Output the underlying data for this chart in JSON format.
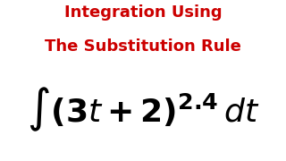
{
  "background_color": "#ffffff",
  "title_line1": "Integration Using",
  "title_line2": "The Substitution Rule",
  "title_color": "#cc0000",
  "title_fontsize": 13,
  "title_bold": true,
  "formula_fontsize": 26,
  "formula_color": "#000000"
}
